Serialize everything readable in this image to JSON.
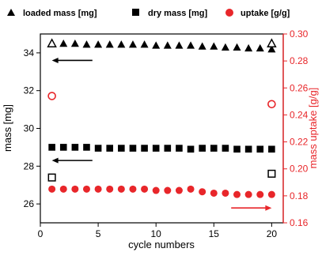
{
  "chart_data": {
    "type": "scatter",
    "xlabel": "cycle numbers",
    "ylabel_left": "mass [mg]",
    "ylabel_right": "mass uptake [g/g]",
    "xlim": [
      0,
      21
    ],
    "ylim_left": [
      25,
      35
    ],
    "ylim_right": [
      0.16,
      0.3
    ],
    "x_ticks": [
      0,
      5,
      10,
      15,
      20
    ],
    "y_left_ticks": [
      26,
      28,
      30,
      32,
      34
    ],
    "y_right_ticks": [
      0.16,
      0.18,
      0.2,
      0.22,
      0.24,
      0.26,
      0.28,
      0.3
    ],
    "x_tick_labels": [
      "0",
      "5",
      "10",
      "15",
      "20"
    ],
    "y_left_tick_labels": [
      "26",
      "28",
      "30",
      "32",
      "34"
    ],
    "y_right_tick_labels": [
      "0.16",
      "0.18",
      "0.20",
      "0.22",
      "0.24",
      "0.26",
      "0.28",
      "0.30"
    ],
    "legend_placement": "top",
    "grid": false,
    "colors": {
      "left_axis": "#000000",
      "right_axis": "#e8262a",
      "uptake": "#e8262a"
    },
    "series": [
      {
        "name": "loaded mass [mg]",
        "axis": "left",
        "marker": "triangle",
        "x": [
          1,
          2,
          3,
          4,
          5,
          6,
          7,
          8,
          9,
          10,
          11,
          12,
          13,
          14,
          15,
          16,
          17,
          18,
          19,
          20
        ],
        "y": [
          34.5,
          34.5,
          34.5,
          34.45,
          34.45,
          34.45,
          34.45,
          34.45,
          34.45,
          34.4,
          34.4,
          34.4,
          34.4,
          34.35,
          34.35,
          34.3,
          34.3,
          34.25,
          34.25,
          34.2
        ]
      },
      {
        "name": "dry mass  [mg]",
        "axis": "left",
        "marker": "square",
        "x": [
          1,
          2,
          3,
          4,
          5,
          6,
          7,
          8,
          9,
          10,
          11,
          12,
          13,
          14,
          15,
          16,
          17,
          18,
          19,
          20
        ],
        "y": [
          29.0,
          29.0,
          29.0,
          29.0,
          28.95,
          28.95,
          28.95,
          28.95,
          28.95,
          28.95,
          28.95,
          28.95,
          28.9,
          28.95,
          28.95,
          28.95,
          28.9,
          28.9,
          28.9,
          28.9
        ]
      },
      {
        "name": "uptake [g/g]",
        "axis": "right",
        "marker": "circle",
        "x": [
          1,
          2,
          3,
          4,
          5,
          6,
          7,
          8,
          9,
          10,
          11,
          12,
          13,
          14,
          15,
          16,
          17,
          18,
          19,
          20
        ],
        "y": [
          0.185,
          0.185,
          0.185,
          0.185,
          0.185,
          0.185,
          0.185,
          0.185,
          0.185,
          0.184,
          0.184,
          0.184,
          0.185,
          0.183,
          0.182,
          0.182,
          0.181,
          0.181,
          0.181,
          0.181
        ]
      }
    ],
    "open_points": [
      {
        "marker": "triangle",
        "axis": "left",
        "x": 1,
        "y": 34.5
      },
      {
        "marker": "triangle",
        "axis": "left",
        "x": 20,
        "y": 34.5
      },
      {
        "marker": "square",
        "axis": "left",
        "x": 1,
        "y": 27.4
      },
      {
        "marker": "square",
        "axis": "left",
        "x": 20,
        "y": 27.6
      },
      {
        "marker": "circle",
        "axis": "right",
        "x": 1,
        "y": 0.254
      },
      {
        "marker": "circle",
        "axis": "right",
        "x": 20,
        "y": 0.248
      }
    ],
    "arrows": [
      {
        "direction": "left",
        "axis": "left",
        "x_from": 4.5,
        "x_to": 1,
        "y": 33.6,
        "color": "#000000"
      },
      {
        "direction": "left",
        "axis": "left",
        "x_from": 4.5,
        "x_to": 1,
        "y": 28.3,
        "color": "#000000"
      },
      {
        "direction": "right",
        "axis": "right",
        "x_from": 16.5,
        "x_to": 20,
        "y": 0.171,
        "color": "#e8262a"
      }
    ]
  }
}
